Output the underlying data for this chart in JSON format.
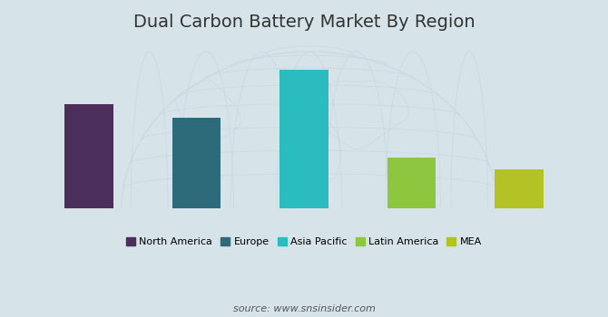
{
  "title": "Dual Carbon Battery Market By Region",
  "categories": [
    "North America",
    "Europe",
    "Asia Pacific",
    "Latin America",
    "MEA"
  ],
  "values": [
    0.62,
    0.54,
    0.82,
    0.3,
    0.23
  ],
  "bar_colors": [
    "#4B2E5A",
    "#2E6B7A",
    "#2ABCBF",
    "#8DC63F",
    "#B5C226"
  ],
  "background_color": "#D6E4EA",
  "globe_color": "#C2D5DC",
  "source_text": "source: www.snsinsider.com",
  "title_fontsize": 14,
  "legend_fontsize": 8,
  "source_fontsize": 8,
  "bar_width": 0.45,
  "ylim": [
    0,
    1.0
  ]
}
